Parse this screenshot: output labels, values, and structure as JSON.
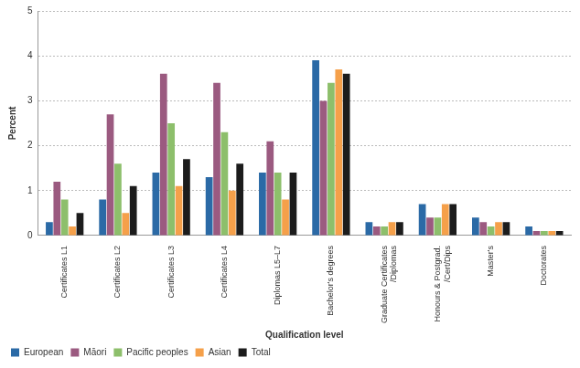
{
  "chart_data": {
    "type": "bar",
    "x_label": "Qualification level",
    "y_label": "Percent",
    "categories": [
      "Certificates L1",
      "Certificates L2",
      "Certificates L3",
      "Certificates L4",
      "Diplomas L5–L7",
      "Bachelor's degrees",
      "Graduate Certificates /Diplomas",
      "Honours & Postgrad. /Cert/Dips",
      "Master's",
      "Doctorates"
    ],
    "series": [
      {
        "name": "European",
        "color": "#2b6aa6",
        "values": [
          0.3,
          0.8,
          1.4,
          1.3,
          1.4,
          3.9,
          0.3,
          0.7,
          0.4,
          0.2
        ]
      },
      {
        "name": "Māori",
        "color": "#9b5a80",
        "values": [
          1.2,
          2.7,
          3.6,
          3.4,
          2.1,
          3.0,
          0.2,
          0.4,
          0.3,
          0.1
        ]
      },
      {
        "name": "Pacific peoples",
        "color": "#8dbf6b",
        "values": [
          0.8,
          1.6,
          2.5,
          2.3,
          1.4,
          3.4,
          0.2,
          0.4,
          0.2,
          0.1
        ]
      },
      {
        "name": "Asian",
        "color": "#f5a04a",
        "values": [
          0.2,
          0.5,
          1.1,
          1.0,
          0.8,
          3.7,
          0.3,
          0.7,
          0.3,
          0.1
        ]
      },
      {
        "name": "Total",
        "color": "#1c1c1c",
        "values": [
          0.5,
          1.1,
          1.7,
          1.6,
          1.4,
          3.6,
          0.3,
          0.7,
          0.3,
          0.1
        ]
      }
    ],
    "ylim": [
      0,
      5
    ],
    "yticks": [
      0,
      1,
      2,
      3,
      4,
      5
    ],
    "grid": true,
    "legend": "bottom"
  }
}
